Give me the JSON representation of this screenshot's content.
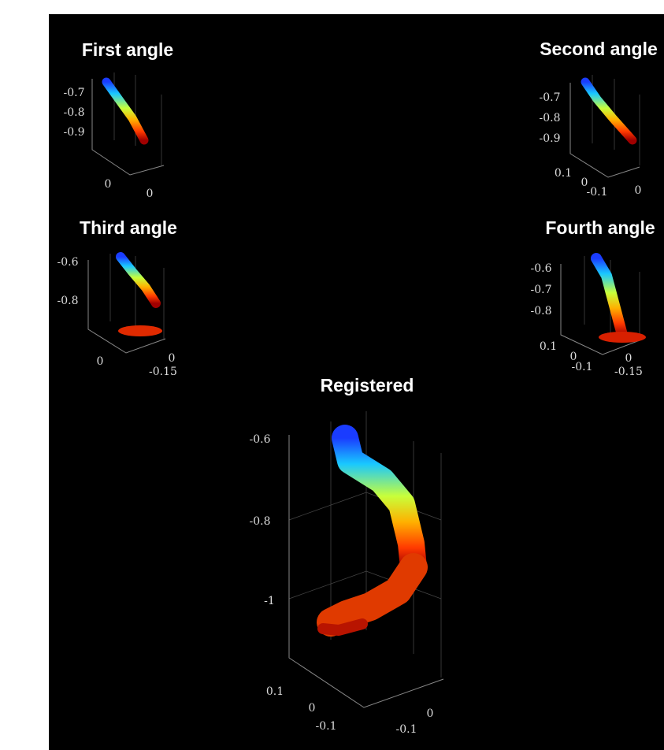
{
  "panels": [
    {
      "title": "First angle",
      "ticks": [
        "-0.7",
        "-0.8",
        "-0.9",
        "0",
        "0"
      ]
    },
    {
      "title": "Second angle",
      "ticks": [
        "-0.7",
        "-0.8",
        "-0.9",
        "0.1",
        "0",
        "-0.1",
        "0"
      ]
    },
    {
      "title": "Third angle",
      "ticks": [
        "-0.6",
        "-0.8",
        "0",
        "0",
        "-0.15"
      ]
    },
    {
      "title": "Fourth angle",
      "ticks": [
        "-0.6",
        "-0.7",
        "-0.8",
        "0.1",
        "0",
        "-0.1",
        "0",
        "-0.15"
      ]
    },
    {
      "title": "Registered",
      "ticks": [
        "-0.6",
        "-0.8",
        "-1",
        "0.1",
        "0",
        "-0.1",
        "-0.1",
        "0"
      ]
    }
  ]
}
